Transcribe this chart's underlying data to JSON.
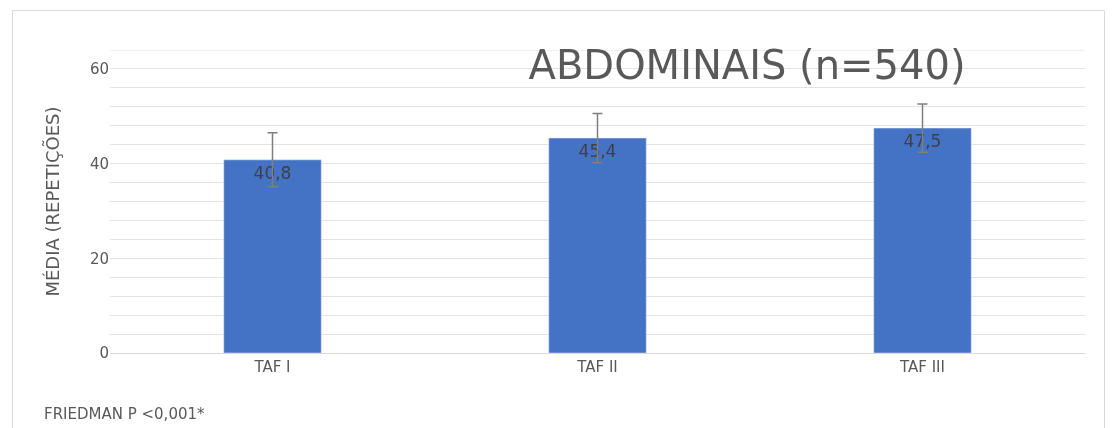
{
  "chart_data": {
    "type": "bar",
    "title": "ABDOMINAIS (n=540)",
    "ylabel": "MÉDIA (REPETIÇÕES)",
    "categories": [
      "TAF I",
      "TAF II",
      "TAF III"
    ],
    "values": [
      40.8,
      45.4,
      47.5
    ],
    "value_labels": [
      "40,8",
      "45,4",
      "47,5"
    ],
    "errors": [
      5.7,
      5.2,
      5.1
    ],
    "color": "#4472c4",
    "ylim": [
      0,
      64
    ],
    "yticks": [
      0,
      {
        "value": 4,
        "label": null
      },
      {
        "value": 8,
        "label": null
      },
      {
        "value": 12,
        "label": null
      },
      {
        "value": 16,
        "label": null
      },
      20,
      {
        "value": 24,
        "label": null
      },
      {
        "value": 28,
        "label": null
      },
      {
        "value": 32,
        "label": null
      },
      {
        "value": 36,
        "label": null
      },
      40,
      {
        "value": 44,
        "label": null
      },
      {
        "value": 48,
        "label": null
      },
      {
        "value": 52,
        "label": null
      },
      {
        "value": 56,
        "label": null
      },
      60,
      {
        "value": 64,
        "label": null
      }
    ],
    "grid": "y",
    "legend": false,
    "annotations": [
      "FRIEDMAN P <0,001*"
    ]
  }
}
